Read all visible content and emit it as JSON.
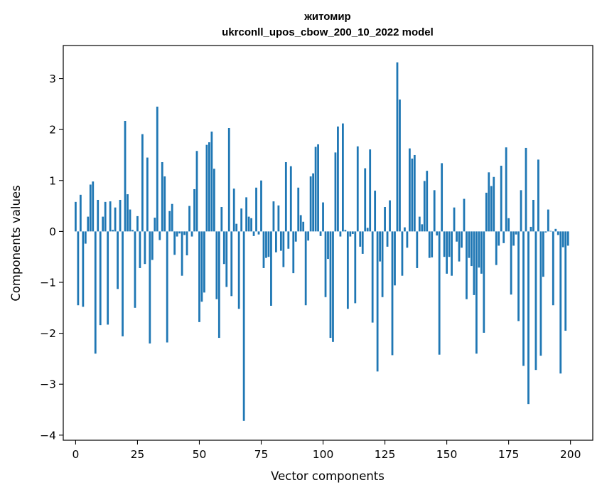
{
  "chart_data": {
    "type": "bar",
    "title": "житомир",
    "subtitle": "ukrconll_upos_cbow_200_10_2022 model",
    "xlabel": "Vector components",
    "ylabel": "Components values",
    "xlim": [
      -5,
      209
    ],
    "ylim": [
      -4.1,
      3.65
    ],
    "xticks": [
      0,
      25,
      50,
      75,
      100,
      125,
      150,
      175,
      200
    ],
    "yticks": [
      -4,
      -3,
      -2,
      -1,
      0,
      1,
      2,
      3
    ],
    "bar_color": "#1f77b4",
    "grid": false,
    "legend": "none",
    "values": [
      0.58,
      -1.45,
      0.72,
      -1.48,
      -0.24,
      0.29,
      0.92,
      0.98,
      -2.4,
      0.62,
      -1.84,
      0.29,
      0.58,
      -1.83,
      0.59,
      0.03,
      0.47,
      -1.13,
      0.62,
      -2.06,
      2.17,
      0.73,
      0.43,
      0.03,
      -1.5,
      0.3,
      -0.72,
      1.91,
      -0.64,
      1.45,
      -2.2,
      -0.56,
      0.27,
      2.45,
      -0.17,
      1.36,
      1.08,
      -2.18,
      0.4,
      0.54,
      -0.46,
      -0.1,
      -0.04,
      -0.87,
      -0.07,
      -0.47,
      0.5,
      -0.1,
      0.83,
      1.58,
      -1.78,
      -1.38,
      -1.2,
      1.7,
      1.75,
      1.96,
      1.23,
      -1.33,
      -2.09,
      0.48,
      -0.64,
      -1.09,
      2.03,
      -1.27,
      0.84,
      0.15,
      -1.52,
      0.45,
      -3.72,
      0.67,
      0.29,
      0.26,
      -0.09,
      0.86,
      -0.06,
      1.0,
      -0.72,
      -0.52,
      -0.5,
      -1.46,
      0.59,
      -0.41,
      0.51,
      -0.38,
      -0.7,
      1.36,
      -0.34,
      1.28,
      -0.82,
      -0.2,
      0.86,
      0.32,
      0.19,
      -1.45,
      -0.18,
      1.08,
      1.14,
      1.66,
      1.71,
      -0.09,
      0.57,
      -1.29,
      -0.54,
      -2.09,
      -2.17,
      1.55,
      2.06,
      -0.1,
      2.12,
      0.03,
      -1.52,
      -0.1,
      -0.05,
      -1.41,
      1.67,
      -0.3,
      -0.44,
      1.24,
      0.07,
      1.61,
      -1.79,
      0.8,
      -2.75,
      -0.59,
      -1.29,
      0.48,
      -0.3,
      0.61,
      -2.43,
      -1.06,
      3.32,
      2.59,
      -0.87,
      0.08,
      -0.32,
      1.63,
      1.43,
      1.5,
      -0.72,
      0.29,
      0.14,
      0.99,
      1.19,
      -0.52,
      -0.51,
      0.81,
      -0.08,
      -2.42,
      1.34,
      -0.5,
      -0.83,
      -0.5,
      -0.87,
      0.47,
      -0.2,
      -0.59,
      -0.32,
      0.64,
      -1.33,
      -0.52,
      -0.68,
      -1.25,
      -2.4,
      -0.71,
      -0.83,
      -1.99,
      0.76,
      1.16,
      0.89,
      1.07,
      -0.66,
      -0.28,
      1.29,
      -0.23,
      1.65,
      0.26,
      -1.24,
      -0.28,
      -0.06,
      -1.76,
      0.81,
      -2.64,
      1.64,
      -3.39,
      0.09,
      0.62,
      -2.72,
      1.41,
      -2.44,
      -0.89,
      -0.02,
      0.43,
      0.01,
      -1.45,
      0.05,
      -0.07,
      -2.79,
      -0.31,
      -1.95,
      -0.28
    ]
  }
}
